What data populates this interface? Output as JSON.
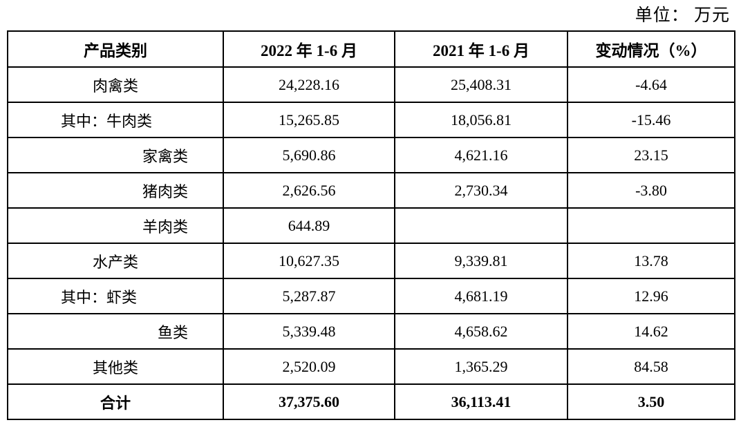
{
  "unit_label": "单位： 万元",
  "table": {
    "headers": [
      "产品类别",
      "2022 年 1-6 月",
      "2021 年 1-6 月",
      "变动情况（%）"
    ],
    "rows": [
      {
        "label": "肉禽类",
        "align": "center",
        "v2022": "24,228.16",
        "v2021": "25,408.31",
        "change": "-4.64",
        "bold": false
      },
      {
        "label": "其中：牛肉类",
        "align": "left",
        "v2022": "15,265.85",
        "v2021": "18,056.81",
        "change": "-15.46",
        "bold": false
      },
      {
        "label": "家禽类",
        "align": "indent",
        "v2022": "5,690.86",
        "v2021": "4,621.16",
        "change": "23.15",
        "bold": false
      },
      {
        "label": "猪肉类",
        "align": "indent",
        "v2022": "2,626.56",
        "v2021": "2,730.34",
        "change": "-3.80",
        "bold": false
      },
      {
        "label": "羊肉类",
        "align": "indent",
        "v2022": "644.89",
        "v2021": "",
        "change": "",
        "bold": false
      },
      {
        "label": "水产类",
        "align": "center",
        "v2022": "10,627.35",
        "v2021": "9,339.81",
        "change": "13.78",
        "bold": false
      },
      {
        "label": "其中：虾类",
        "align": "left",
        "v2022": "5,287.87",
        "v2021": "4,681.19",
        "change": "12.96",
        "bold": false
      },
      {
        "label": "鱼类",
        "align": "indent",
        "v2022": "5,339.48",
        "v2021": "4,658.62",
        "change": "14.62",
        "bold": false
      },
      {
        "label": "其他类",
        "align": "center",
        "v2022": "2,520.09",
        "v2021": "1,365.29",
        "change": "84.58",
        "bold": false
      },
      {
        "label": "合计",
        "align": "center",
        "v2022": "37,375.60",
        "v2021": "36,113.41",
        "change": "3.50",
        "bold": true
      }
    ]
  }
}
